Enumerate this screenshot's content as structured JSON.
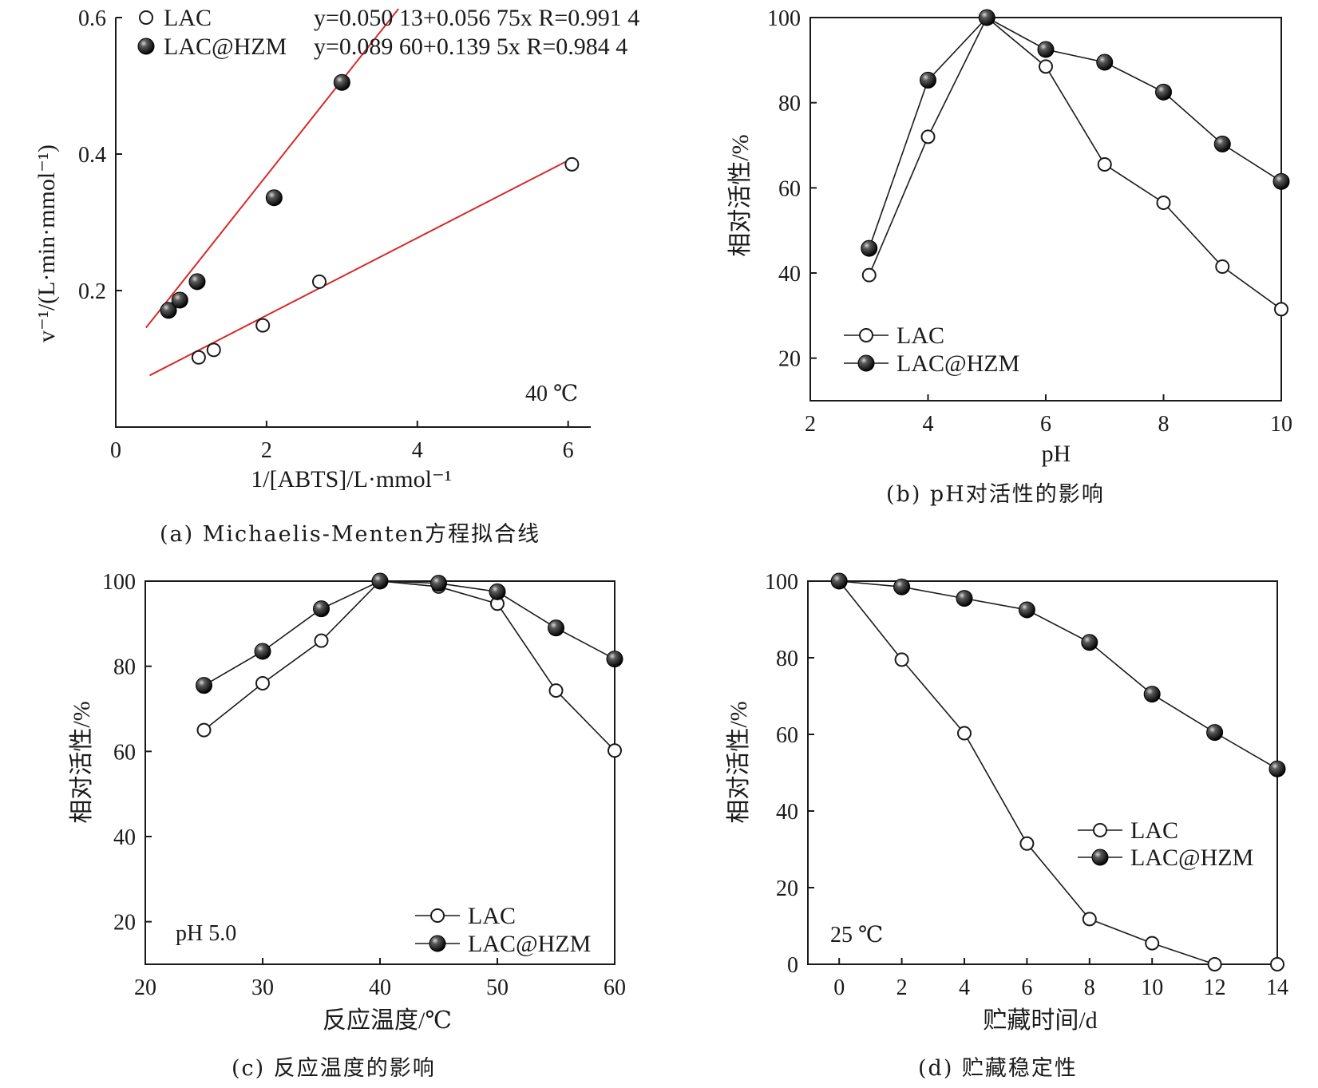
{
  "chart_data": [
    {
      "id": "a",
      "type": "scatter",
      "xlabel": "1/[ABTS]/L·mmol⁻¹",
      "ylabel": "v⁻¹/(L·min·mmol⁻¹)",
      "xlim": [
        0,
        6.3
      ],
      "ylim": [
        0,
        0.6
      ],
      "xticks": [
        0,
        2,
        4,
        6
      ],
      "yticks": [
        0.2,
        0.4,
        0.6
      ],
      "x_tick_labels": [
        "0",
        "2",
        "4",
        "6"
      ],
      "y_tick_labels": [
        "0.2",
        "0.4",
        "0.6"
      ],
      "annotation": "40 ℃",
      "caption": "(a) Michaelis-Menten方程拟合线",
      "series": [
        {
          "name": "LAC",
          "marker": "open",
          "x": [
            1.1,
            1.3,
            1.95,
            2.7,
            6.05
          ],
          "y": [
            0.102,
            0.113,
            0.149,
            0.213,
            0.385
          ],
          "fit": {
            "label": "y=0.050 13+0.056 75x R=0.991 4",
            "intercept": 0.05013,
            "slope": 0.05675,
            "x_range": [
              0.45,
              6.05
            ]
          }
        },
        {
          "name": "LAC@HZM",
          "marker": "filled",
          "x": [
            0.7,
            0.85,
            1.08,
            2.1,
            3.0
          ],
          "y": [
            0.171,
            0.186,
            0.213,
            0.336,
            0.505
          ],
          "fit": {
            "label": "y=0.089 60+0.139 5x R=0.984 4",
            "intercept": 0.0896,
            "slope": 0.1395,
            "x_range": [
              0.4,
              3.75
            ]
          }
        }
      ],
      "legend_placement": "top"
    },
    {
      "id": "b",
      "type": "line",
      "xlabel": "pH",
      "ylabel": "相对活性/%",
      "xlim": [
        2,
        10
      ],
      "ylim": [
        10,
        100
      ],
      "xticks": [
        2,
        4,
        6,
        8,
        10
      ],
      "yticks": [
        20,
        40,
        60,
        80,
        100
      ],
      "x_tick_labels": [
        "2",
        "4",
        "6",
        "8",
        "10"
      ],
      "y_tick_labels": [
        "20",
        "40",
        "60",
        "80",
        "100"
      ],
      "caption": "(b) pH对活性的影响",
      "series": [
        {
          "name": "LAC",
          "marker": "open",
          "x": [
            3,
            4,
            5,
            6,
            7,
            8,
            9,
            10
          ],
          "y": [
            39.5,
            72,
            100,
            88.5,
            65.5,
            56.5,
            41.5,
            31.5
          ]
        },
        {
          "name": "LAC@HZM",
          "marker": "filled",
          "x": [
            3,
            4,
            5,
            6,
            7,
            8,
            9,
            10
          ],
          "y": [
            45.8,
            85.3,
            100,
            92.5,
            89.5,
            82.5,
            70.3,
            61.5
          ]
        }
      ],
      "legend_placement": "bottom-left"
    },
    {
      "id": "c",
      "type": "line",
      "xlabel": "反应温度/℃",
      "ylabel": "相对活性/%",
      "xlim": [
        20,
        60
      ],
      "ylim": [
        10,
        100
      ],
      "xticks": [
        20,
        30,
        40,
        50,
        60
      ],
      "yticks": [
        20,
        40,
        60,
        80,
        100
      ],
      "x_tick_labels": [
        "20",
        "30",
        "40",
        "50",
        "60"
      ],
      "y_tick_labels": [
        "20",
        "40",
        "60",
        "80",
        "100"
      ],
      "annotation": "pH 5.0",
      "caption": "(c) 反应温度的影响",
      "series": [
        {
          "name": "LAC",
          "marker": "open",
          "x": [
            25,
            30,
            35,
            40,
            45,
            50,
            55,
            60
          ],
          "y": [
            65,
            76,
            86,
            100,
            98.7,
            94.7,
            74.3,
            60.2
          ]
        },
        {
          "name": "LAC@HZM",
          "marker": "filled",
          "x": [
            25,
            30,
            35,
            40,
            45,
            50,
            55,
            60
          ],
          "y": [
            75.5,
            83.5,
            93.5,
            100,
            99.5,
            97.5,
            89,
            81.7
          ]
        }
      ],
      "legend_placement": "bottom-right"
    },
    {
      "id": "d",
      "type": "line",
      "xlabel": "贮藏时间/d",
      "ylabel": "相对活性/%",
      "xlim": [
        -1,
        14
      ],
      "ylim": [
        0,
        100
      ],
      "xticks": [
        0,
        2,
        4,
        6,
        8,
        10,
        12,
        14
      ],
      "yticks": [
        0,
        20,
        40,
        60,
        80,
        100
      ],
      "x_tick_labels": [
        "0",
        "2",
        "4",
        "6",
        "8",
        "10",
        "12",
        "14"
      ],
      "y_tick_labels": [
        "0",
        "20",
        "40",
        "60",
        "80",
        "100"
      ],
      "annotation": "25 ℃",
      "caption": "(d) 贮藏稳定性",
      "series": [
        {
          "name": "LAC",
          "marker": "open",
          "x": [
            0,
            2,
            4,
            6,
            8,
            10,
            12,
            14
          ],
          "y": [
            100,
            79.5,
            60.3,
            31.5,
            11.8,
            5.5,
            0,
            0
          ]
        },
        {
          "name": "LAC@HZM",
          "marker": "filled",
          "x": [
            0,
            2,
            4,
            6,
            8,
            10,
            12,
            14
          ],
          "y": [
            100,
            98.5,
            95.5,
            92.5,
            84,
            70.5,
            60.5,
            51
          ]
        }
      ],
      "legend_placement": "middle-right"
    }
  ]
}
